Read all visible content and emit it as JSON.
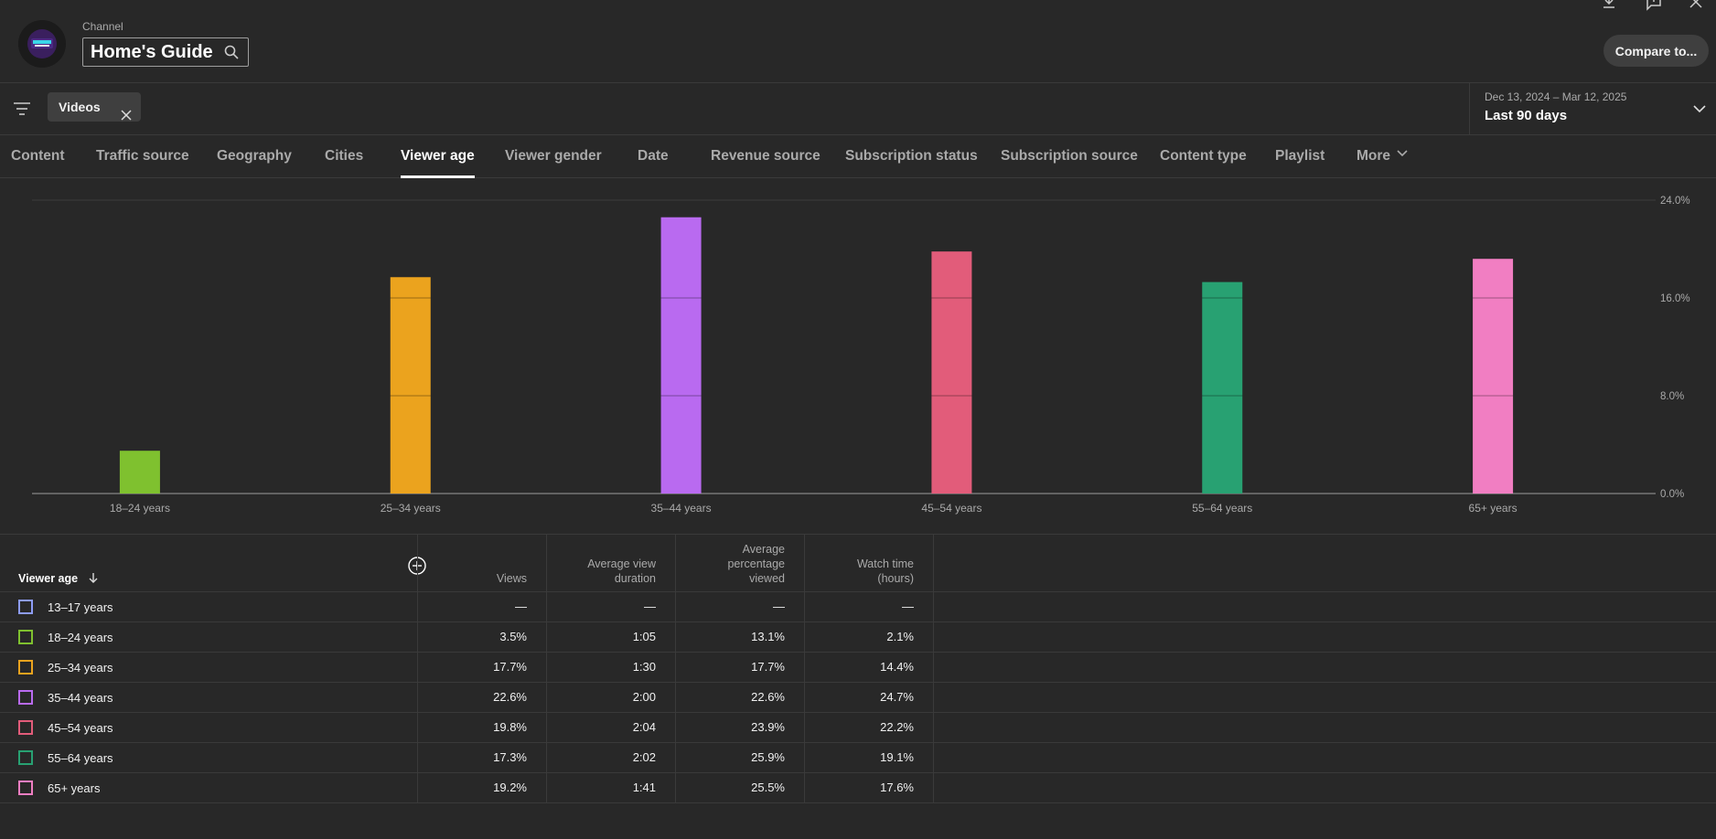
{
  "header": {
    "channel_label": "Channel",
    "channel_name": "Home's Guide",
    "compare_label": "Compare to..."
  },
  "filters": {
    "chip_label": "Videos",
    "date_range": "Dec 13, 2024 – Mar 12, 2025",
    "date_label": "Last 90 days"
  },
  "tabs": [
    {
      "label": "Content"
    },
    {
      "label": "Traffic source"
    },
    {
      "label": "Geography"
    },
    {
      "label": "Cities"
    },
    {
      "label": "Viewer age"
    },
    {
      "label": "Viewer gender"
    },
    {
      "label": "Date"
    },
    {
      "label": "Revenue source"
    },
    {
      "label": "Subscription status"
    },
    {
      "label": "Subscription source"
    },
    {
      "label": "Content type"
    },
    {
      "label": "Playlist"
    },
    {
      "label": "More"
    }
  ],
  "active_tab": "Viewer age",
  "chart_data": {
    "type": "bar",
    "categories": [
      "18–24 years",
      "25–34 years",
      "35–44 years",
      "45–54 years",
      "55–64 years",
      "65+ years"
    ],
    "values": [
      3.5,
      17.7,
      22.6,
      19.8,
      17.3,
      19.2
    ],
    "colors": [
      "#7fc12f",
      "#eba31e",
      "#b96af0",
      "#e25c7a",
      "#28a172",
      "#f17ec2"
    ],
    "ylim": [
      0,
      24
    ],
    "yticks": [
      "0.0%",
      "8.0%",
      "16.0%",
      "24.0%"
    ],
    "ytick_values": [
      0,
      8,
      16,
      24
    ],
    "grid": true
  },
  "table": {
    "first_header": "Viewer age",
    "headers": [
      "Views",
      "Average view duration",
      "Average percentage viewed",
      "Watch time (hours)"
    ],
    "rows": [
      {
        "label": "13–17 years",
        "color": "#8d9cf6",
        "cells": [
          "—",
          "—",
          "—",
          "—"
        ]
      },
      {
        "label": "18–24 years",
        "color": "#7fc12f",
        "cells": [
          "3.5%",
          "1:05",
          "13.1%",
          "2.1%"
        ]
      },
      {
        "label": "25–34 years",
        "color": "#eba31e",
        "cells": [
          "17.7%",
          "1:30",
          "17.7%",
          "14.4%"
        ]
      },
      {
        "label": "35–44 years",
        "color": "#b96af0",
        "cells": [
          "22.6%",
          "2:00",
          "22.6%",
          "24.7%"
        ]
      },
      {
        "label": "45–54 years",
        "color": "#e25c7a",
        "cells": [
          "19.8%",
          "2:04",
          "23.9%",
          "22.2%"
        ]
      },
      {
        "label": "55–64 years",
        "color": "#28a172",
        "cells": [
          "17.3%",
          "2:02",
          "25.9%",
          "19.1%"
        ]
      },
      {
        "label": "65+ years",
        "color": "#f17ec2",
        "cells": [
          "19.2%",
          "1:41",
          "25.5%",
          "17.6%"
        ]
      }
    ]
  }
}
